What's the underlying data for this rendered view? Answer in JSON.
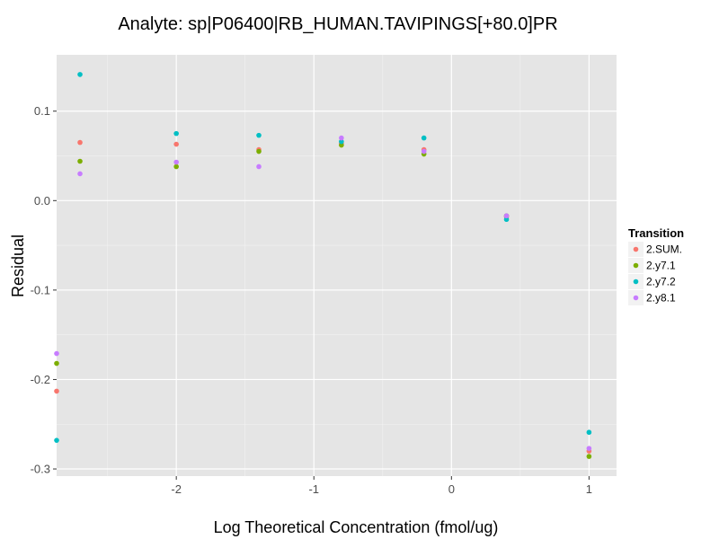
{
  "chart_data": {
    "type": "scatter",
    "title": "Analyte: sp|P06400|RB_HUMAN.TAVIPINGS[+80.0]PR",
    "xlabel": "Log Theoretical Concentration (fmol/ug)",
    "ylabel": "Residual",
    "xlim": [
      -2.87,
      1.2
    ],
    "ylim": [
      -0.308,
      0.163
    ],
    "x_ticks": [
      -2,
      -1,
      0,
      1
    ],
    "x_tick_labels": [
      "-2",
      "-1",
      "0",
      "1"
    ],
    "y_ticks": [
      -0.3,
      -0.2,
      -0.1,
      0.0,
      0.1
    ],
    "y_tick_labels": [
      "-0.3",
      "-0.2",
      "-0.1",
      "0.0",
      "0.1"
    ],
    "grid": true,
    "legend": {
      "title": "Transition",
      "placement": "right"
    },
    "series": [
      {
        "name": "2.SUM.",
        "color": "#F8766D",
        "x": [
          -2.87,
          -2.7,
          -2.0,
          -1.4,
          -0.8,
          -0.2,
          0.4,
          1.0
        ],
        "y": [
          -0.213,
          0.065,
          0.063,
          0.057,
          0.064,
          0.057,
          -0.018,
          -0.28
        ]
      },
      {
        "name": "2.y7.1",
        "color": "#7CAE00",
        "x": [
          -2.87,
          -2.7,
          -2.0,
          -1.4,
          -0.8,
          -0.2,
          0.4,
          1.0
        ],
        "y": [
          -0.182,
          0.044,
          0.038,
          0.055,
          0.062,
          0.052,
          -0.017,
          -0.286
        ]
      },
      {
        "name": "2.y7.2",
        "color": "#00BFC4",
        "x": [
          -2.87,
          -2.7,
          -2.0,
          -1.4,
          -0.8,
          -0.2,
          0.4,
          1.0
        ],
        "y": [
          -0.268,
          0.141,
          0.075,
          0.073,
          0.066,
          0.07,
          -0.021,
          -0.259
        ]
      },
      {
        "name": "2.y8.1",
        "color": "#C77CFF",
        "x": [
          -2.87,
          -2.7,
          -2.0,
          -1.4,
          -0.8,
          -0.2,
          0.4,
          1.0
        ],
        "y": [
          -0.171,
          0.03,
          0.043,
          0.038,
          0.07,
          0.055,
          -0.017,
          -0.277
        ]
      }
    ]
  }
}
